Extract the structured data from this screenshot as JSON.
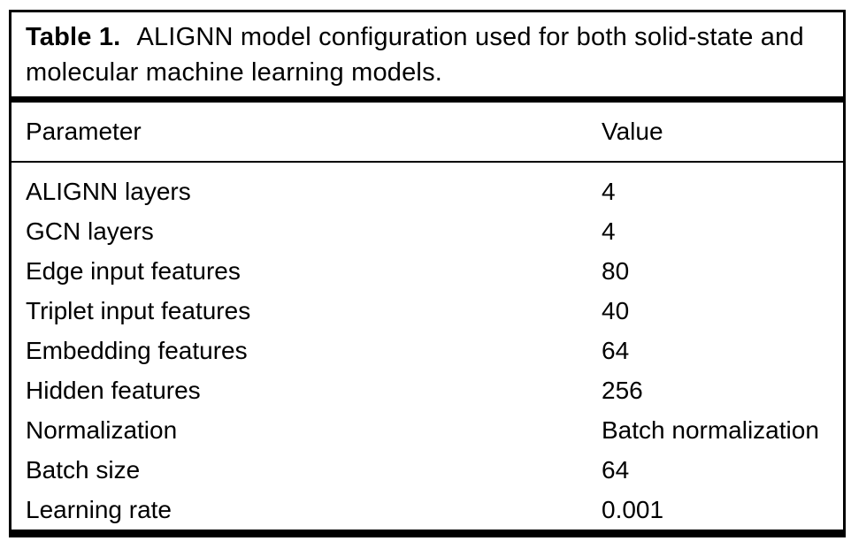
{
  "table": {
    "caption": {
      "label": "Table 1.",
      "text": "ALIGNN model configuration used for both solid-state and molecular machine learning models."
    },
    "columns": [
      "Parameter",
      "Value"
    ],
    "rows": [
      {
        "parameter": "ALIGNN layers",
        "value": "4"
      },
      {
        "parameter": "GCN layers",
        "value": "4"
      },
      {
        "parameter": "Edge input features",
        "value": "80"
      },
      {
        "parameter": "Triplet input features",
        "value": "40"
      },
      {
        "parameter": "Embedding features",
        "value": "64"
      },
      {
        "parameter": "Hidden features",
        "value": "256"
      },
      {
        "parameter": "Normalization",
        "value": "Batch normalization"
      },
      {
        "parameter": "Batch size",
        "value": "64"
      },
      {
        "parameter": "Learning rate",
        "value": "0.001"
      }
    ],
    "colors": {
      "text": "#000000",
      "background": "#ffffff",
      "border": "#000000"
    }
  }
}
